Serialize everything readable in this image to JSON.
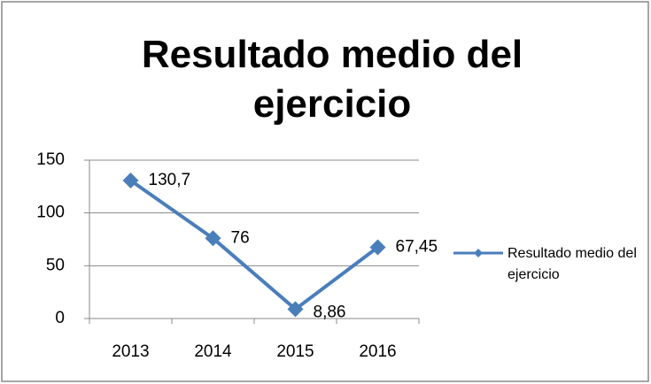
{
  "chart_data": {
    "type": "line",
    "title": "Resultado medio del ejercicio",
    "categories": [
      "2013",
      "2014",
      "2015",
      "2016"
    ],
    "series": [
      {
        "name": "Resultado medio del ejercicio",
        "color": "#4a7ebb",
        "values": [
          130.7,
          76,
          8.86,
          67.45
        ],
        "value_labels": [
          "130,7",
          "76",
          "8,86",
          "67,45"
        ]
      }
    ],
    "ylim": [
      0,
      150
    ],
    "yticks": [
      0,
      50,
      100,
      150
    ],
    "grid": true,
    "legend": "right"
  }
}
